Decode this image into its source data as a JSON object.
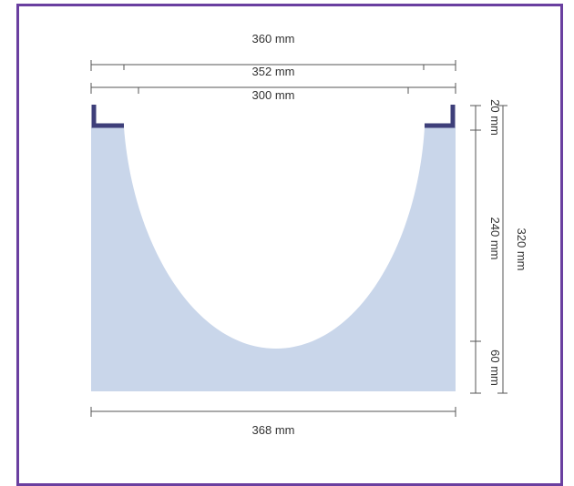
{
  "colors": {
    "border": "#6a3fa0",
    "fill": "#c9d6ea",
    "lip": "#3e3f7a",
    "line": "#555555",
    "text": "#333333"
  },
  "dimensions": {
    "overall_top": "360 mm",
    "inner_top": "352 mm",
    "opening": "300 mm",
    "bottom_width": "368 mm",
    "lip_height": "20 mm",
    "channel_height": "240 mm",
    "base_height": "60 mm",
    "total_height": "320 mm"
  }
}
